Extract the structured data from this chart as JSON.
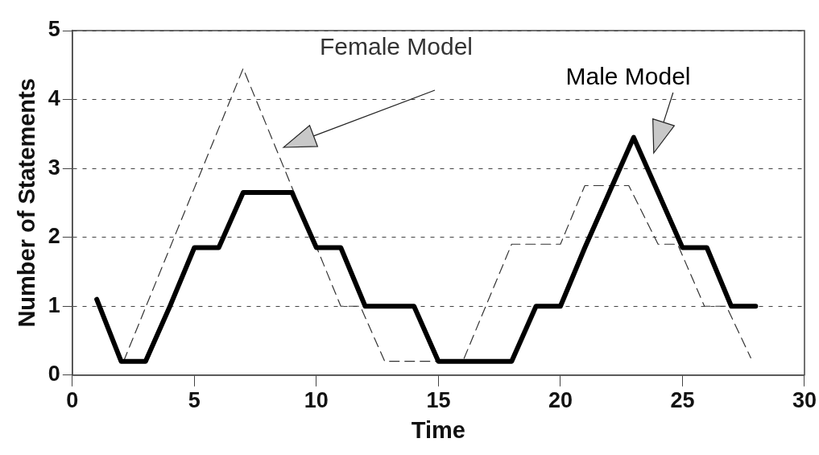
{
  "chart_data": {
    "type": "line",
    "xlabel": "Time",
    "ylabel": "Number of Statements",
    "xlim": [
      0,
      30
    ],
    "xticks": [
      0,
      5,
      10,
      15,
      20,
      25,
      30
    ],
    "ylim": [
      0,
      5
    ],
    "yticks": [
      0,
      1,
      2,
      3,
      4,
      5
    ],
    "grid": "y",
    "legend": false,
    "marker": "none",
    "series": [
      {
        "name": "Male Model",
        "color": "#000000",
        "line_style": "solid",
        "x": [
          1,
          2,
          3,
          4,
          5,
          6,
          7,
          8,
          9,
          10,
          11,
          12,
          13,
          14,
          15,
          16,
          17,
          18,
          19,
          20,
          21,
          22,
          23,
          24,
          25,
          26,
          27,
          28
        ],
        "values": [
          1.1,
          0.2,
          0.2,
          1.0,
          1.85,
          1.85,
          2.65,
          2.65,
          2.65,
          1.85,
          1.85,
          1.0,
          1.0,
          1.0,
          0.2,
          0.2,
          0.2,
          0.2,
          1.0,
          1.0,
          1.85,
          2.65,
          3.45,
          2.65,
          1.85,
          1.85,
          1.0,
          1.0
        ]
      },
      {
        "name": "Female Model",
        "color": "#333333",
        "line_style": "dashed",
        "x": [
          2.1,
          7,
          11,
          11.8,
          12.8,
          16,
          18,
          20,
          21,
          22.8,
          24,
          24.8,
          25.9,
          26.8,
          27.8
        ],
        "values": [
          0.2,
          4.45,
          1.0,
          1.0,
          0.2,
          0.2,
          1.9,
          1.9,
          2.75,
          2.75,
          1.9,
          1.9,
          1.0,
          1.0,
          0.25
        ]
      }
    ]
  }
}
